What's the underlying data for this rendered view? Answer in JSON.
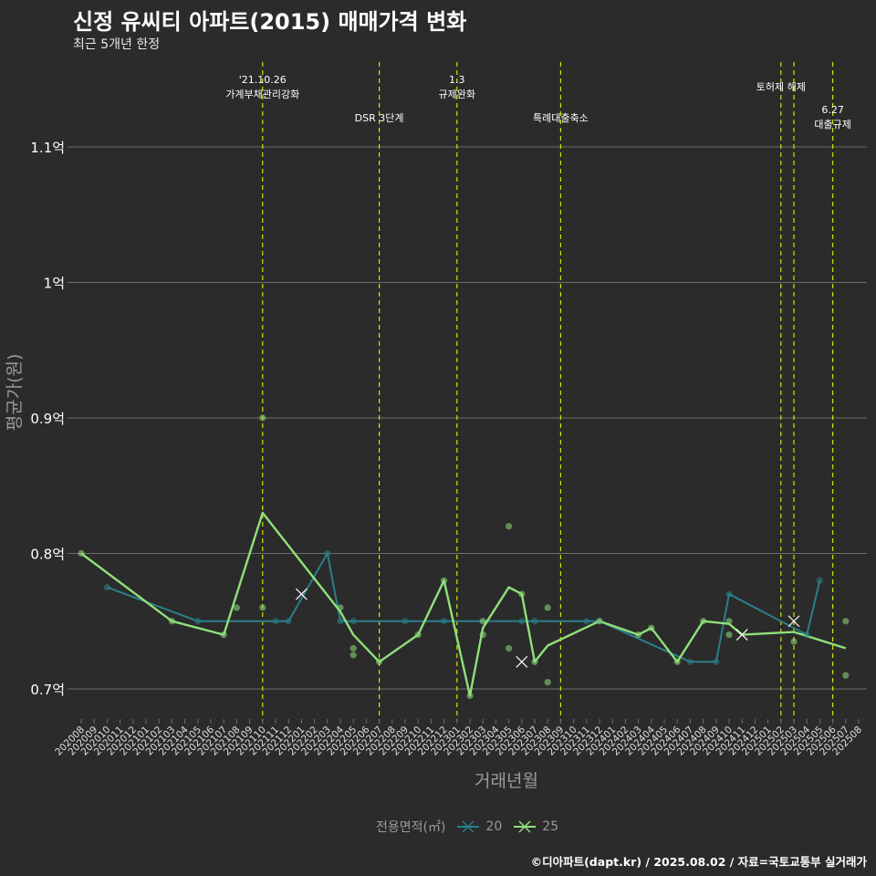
{
  "title": "신정 유씨티 아파트(2015) 매매가격 변화",
  "subtitle": "최근 5개년 한정",
  "caption": "©디아파트(dapt.kr) / 2025.08.02 / 자료=국토교통부 실거래가",
  "colors": {
    "background": "#2b2b2b",
    "grid": "#6e6e6e",
    "series_20": "#2a7f8a",
    "series_25": "#90e07a",
    "event_line": "#d8e000",
    "axis_text": "#9a9a9a"
  },
  "chart_data": {
    "type": "line",
    "xlabel": "거래년월",
    "ylabel": "평균가(원)",
    "ylim": [
      0.675,
      1.175
    ],
    "y_ticks": [
      {
        "value": 0.7,
        "label": "0.7억"
      },
      {
        "value": 0.8,
        "label": "0.8억"
      },
      {
        "value": 0.9,
        "label": "0.9억"
      },
      {
        "value": 1.0,
        "label": "1억"
      },
      {
        "value": 1.1,
        "label": "1.1억"
      }
    ],
    "categories": [
      "202008",
      "202009",
      "202010",
      "202011",
      "202012",
      "202101",
      "202102",
      "202103",
      "202104",
      "202105",
      "202106",
      "202107",
      "202108",
      "202109",
      "202110",
      "202111",
      "202112",
      "202201",
      "202202",
      "202203",
      "202204",
      "202205",
      "202206",
      "202207",
      "202208",
      "202209",
      "202210",
      "202211",
      "202212",
      "202301",
      "202302",
      "202303",
      "202304",
      "202305",
      "202306",
      "202307",
      "202308",
      "202309",
      "202310",
      "202311",
      "202312",
      "202401",
      "202402",
      "202403",
      "202404",
      "202405",
      "202406",
      "202407",
      "202408",
      "202409",
      "202410",
      "202411",
      "202412",
      "202501",
      "202502",
      "202503",
      "202504",
      "202505",
      "202506",
      "202507",
      "202508"
    ],
    "legend_title": "전용면적(㎡)",
    "series": [
      {
        "name": "20",
        "line": [
          {
            "x": "202010",
            "y": 0.775
          },
          {
            "x": "202105",
            "y": 0.75
          },
          {
            "x": "202111",
            "y": 0.75
          },
          {
            "x": "202112",
            "y": 0.75
          },
          {
            "x": "202203",
            "y": 0.8
          },
          {
            "x": "202204",
            "y": 0.75
          },
          {
            "x": "202205",
            "y": 0.75
          },
          {
            "x": "202209",
            "y": 0.75
          },
          {
            "x": "202212",
            "y": 0.75
          },
          {
            "x": "202306",
            "y": 0.75
          },
          {
            "x": "202307",
            "y": 0.75
          },
          {
            "x": "202311",
            "y": 0.75
          },
          {
            "x": "202312",
            "y": 0.75
          },
          {
            "x": "202407",
            "y": 0.72
          },
          {
            "x": "202409",
            "y": 0.72
          },
          {
            "x": "202410",
            "y": 0.77
          },
          {
            "x": "202504",
            "y": 0.74
          },
          {
            "x": "202505",
            "y": 0.78
          }
        ],
        "points": [
          {
            "x": "202010",
            "y": 0.775
          },
          {
            "x": "202105",
            "y": 0.75
          },
          {
            "x": "202111",
            "y": 0.75
          },
          {
            "x": "202112",
            "y": 0.75
          },
          {
            "x": "202203",
            "y": 0.8
          },
          {
            "x": "202204",
            "y": 0.75
          },
          {
            "x": "202205",
            "y": 0.75
          },
          {
            "x": "202209",
            "y": 0.75
          },
          {
            "x": "202212",
            "y": 0.75
          },
          {
            "x": "202306",
            "y": 0.75
          },
          {
            "x": "202307",
            "y": 0.75
          },
          {
            "x": "202311",
            "y": 0.75
          },
          {
            "x": "202312",
            "y": 0.75
          },
          {
            "x": "202407",
            "y": 0.72
          },
          {
            "x": "202409",
            "y": 0.72
          },
          {
            "x": "202410",
            "y": 0.77
          },
          {
            "x": "202504",
            "y": 0.74
          },
          {
            "x": "202505",
            "y": 0.78
          }
        ],
        "x_markers": [
          {
            "x": "202306",
            "y": 0.72
          }
        ]
      },
      {
        "name": "25",
        "line": [
          {
            "x": "202008",
            "y": 0.8
          },
          {
            "x": "202103",
            "y": 0.75
          },
          {
            "x": "202107",
            "y": 0.74
          },
          {
            "x": "202110",
            "y": 0.83
          },
          {
            "x": "202204",
            "y": 0.757
          },
          {
            "x": "202205",
            "y": 0.74
          },
          {
            "x": "202207",
            "y": 0.72
          },
          {
            "x": "202210",
            "y": 0.74
          },
          {
            "x": "202212",
            "y": 0.78
          },
          {
            "x": "202302",
            "y": 0.695
          },
          {
            "x": "202303",
            "y": 0.745
          },
          {
            "x": "202305",
            "y": 0.775
          },
          {
            "x": "202306",
            "y": 0.77
          },
          {
            "x": "202307",
            "y": 0.72
          },
          {
            "x": "202308",
            "y": 0.732
          },
          {
            "x": "202312",
            "y": 0.75
          },
          {
            "x": "202403",
            "y": 0.74
          },
          {
            "x": "202404",
            "y": 0.745
          },
          {
            "x": "202406",
            "y": 0.72
          },
          {
            "x": "202408",
            "y": 0.75
          },
          {
            "x": "202410",
            "y": 0.748
          },
          {
            "x": "202411",
            "y": 0.74
          },
          {
            "x": "202503",
            "y": 0.742
          },
          {
            "x": "202507",
            "y": 0.73
          }
        ],
        "points": [
          {
            "x": "202008",
            "y": 0.8
          },
          {
            "x": "202103",
            "y": 0.75
          },
          {
            "x": "202107",
            "y": 0.74
          },
          {
            "x": "202108",
            "y": 0.76
          },
          {
            "x": "202110",
            "y": 0.9
          },
          {
            "x": "202110",
            "y": 0.76
          },
          {
            "x": "202204",
            "y": 0.76
          },
          {
            "x": "202205",
            "y": 0.73
          },
          {
            "x": "202205",
            "y": 0.725
          },
          {
            "x": "202207",
            "y": 0.72
          },
          {
            "x": "202210",
            "y": 0.74
          },
          {
            "x": "202212",
            "y": 0.78
          },
          {
            "x": "202302",
            "y": 0.695
          },
          {
            "x": "202303",
            "y": 0.75
          },
          {
            "x": "202303",
            "y": 0.74
          },
          {
            "x": "202305",
            "y": 0.82
          },
          {
            "x": "202305",
            "y": 0.73
          },
          {
            "x": "202306",
            "y": 0.77
          },
          {
            "x": "202307",
            "y": 0.72
          },
          {
            "x": "202308",
            "y": 0.76
          },
          {
            "x": "202308",
            "y": 0.705
          },
          {
            "x": "202312",
            "y": 0.75
          },
          {
            "x": "202403",
            "y": 0.74
          },
          {
            "x": "202404",
            "y": 0.745
          },
          {
            "x": "202406",
            "y": 0.72
          },
          {
            "x": "202408",
            "y": 0.75
          },
          {
            "x": "202410",
            "y": 0.75
          },
          {
            "x": "202410",
            "y": 0.74
          },
          {
            "x": "202503",
            "y": 0.735
          },
          {
            "x": "202507",
            "y": 0.75
          },
          {
            "x": "202507",
            "y": 0.71
          }
        ],
        "x_markers": [
          {
            "x": "202201",
            "y": 0.77
          },
          {
            "x": "202411",
            "y": 0.74
          },
          {
            "x": "202503",
            "y": 0.75
          }
        ]
      }
    ],
    "events": [
      {
        "x": "202110",
        "lines": [
          "'21.10.26",
          "가계부채관리강화"
        ],
        "row": 0
      },
      {
        "x": "202207",
        "lines": [
          "DSR 3단계"
        ],
        "row": 1
      },
      {
        "x": "202301",
        "lines": [
          "1.3",
          "규제완화"
        ],
        "row": 0
      },
      {
        "x": "202309",
        "lines": [
          "특례대출축소"
        ],
        "row": 1
      },
      {
        "x": "202502",
        "lines": [
          "토허제 해제"
        ],
        "row": 2
      },
      {
        "x": "202503",
        "lines": [],
        "row": 2
      },
      {
        "x": "202506",
        "lines": [
          "6.27",
          "대출규제"
        ],
        "row": 3
      }
    ]
  }
}
